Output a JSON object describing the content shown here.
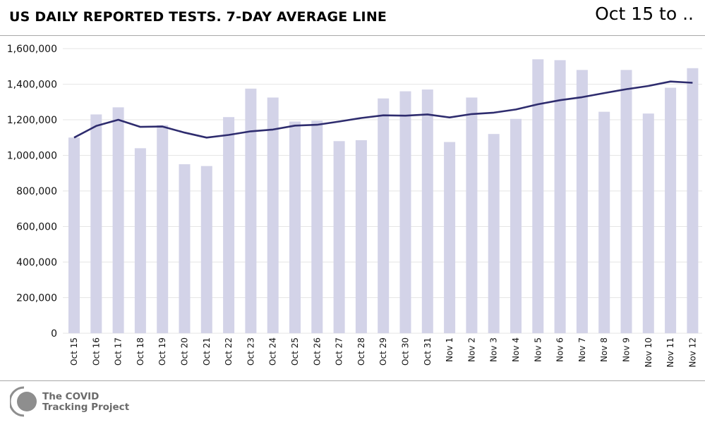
{
  "header": {
    "title": "US DAILY REPORTED TESTS. 7-DAY AVERAGE LINE",
    "date_range": "Oct 15 to .."
  },
  "footer": {
    "line1": "The COVID",
    "line2": "Tracking Project"
  },
  "colors": {
    "bar": "#d3d3e8",
    "line": "#2e2c6e",
    "grid": "#e6e6e6",
    "logo": "#8e8e8e"
  },
  "chart_data": {
    "type": "bar",
    "categories": [
      "Oct 15",
      "Oct 16",
      "Oct 17",
      "Oct 18",
      "Oct 19",
      "Oct 20",
      "Oct 21",
      "Oct 22",
      "Oct 23",
      "Oct 24",
      "Oct 25",
      "Oct 26",
      "Oct 27",
      "Oct 28",
      "Oct 29",
      "Oct 30",
      "Oct 31",
      "Nov 1",
      "Nov 2",
      "Nov 3",
      "Nov 4",
      "Nov 5",
      "Nov 6",
      "Nov 7",
      "Nov 8",
      "Nov 9",
      "Nov 10",
      "Nov 11",
      "Nov 12"
    ],
    "series": [
      {
        "type": "bar",
        "values": [
          1100000,
          1230000,
          1270000,
          1040000,
          1170000,
          950000,
          940000,
          1215000,
          1375000,
          1325000,
          1190000,
          1195000,
          1080000,
          1085000,
          1320000,
          1360000,
          1370000,
          1075000,
          1325000,
          1120000,
          1205000,
          1540000,
          1535000,
          1480000,
          1245000,
          1480000,
          1235000,
          1380000,
          1490000
        ]
      },
      {
        "type": "line",
        "values": [
          1100000,
          1165000,
          1200000,
          1160000,
          1162000,
          1128000,
          1100000,
          1115000,
          1135000,
          1145000,
          1167000,
          1172000,
          1190000,
          1210000,
          1225000,
          1223000,
          1230000,
          1213000,
          1232000,
          1240000,
          1258000,
          1287000,
          1310000,
          1327000,
          1350000,
          1372000,
          1390000,
          1415000,
          1408000
        ]
      }
    ],
    "y_ticks": [
      "0",
      "200,000",
      "400,000",
      "600,000",
      "800,000",
      "1,000,000",
      "1,200,000",
      "1,400,000",
      "1,600,000"
    ],
    "ylim": [
      0,
      1600000
    ],
    "grid": true
  }
}
